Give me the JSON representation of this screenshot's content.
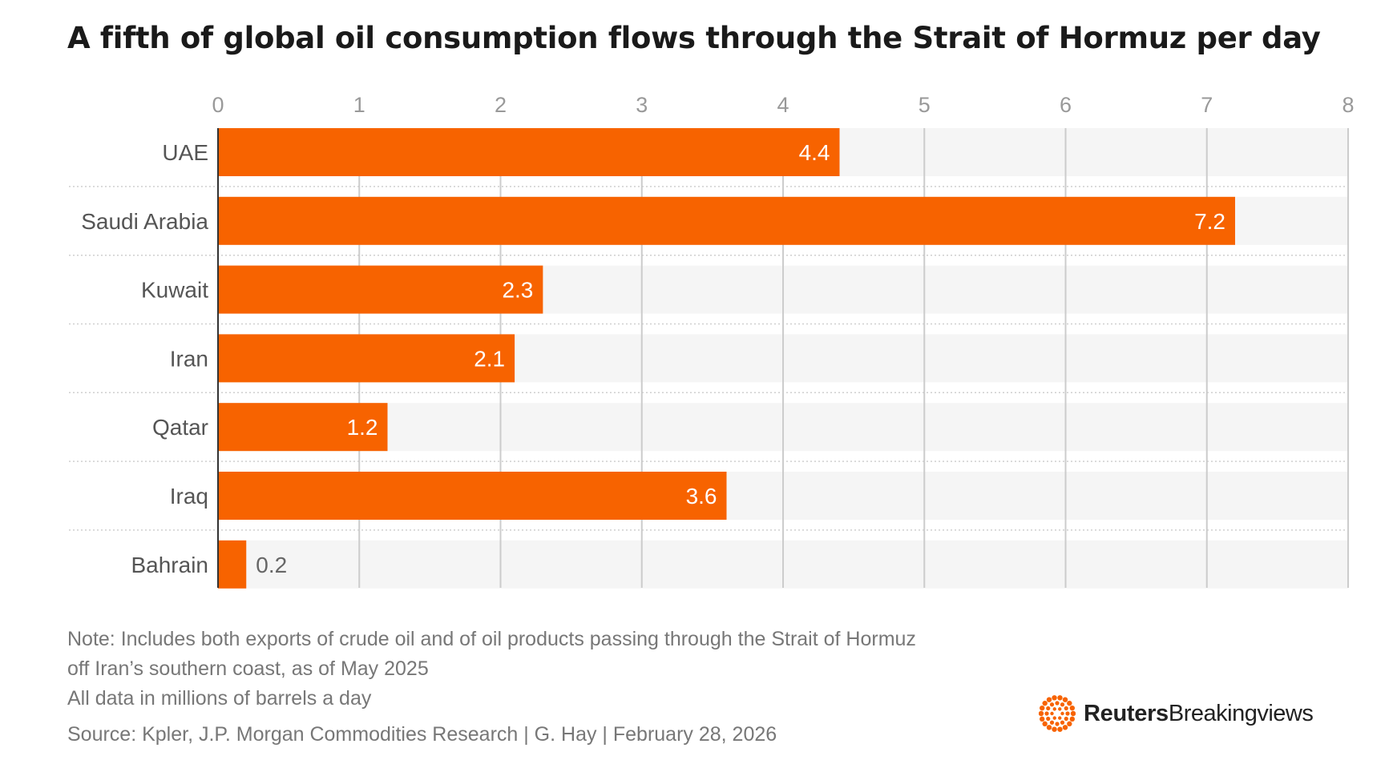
{
  "title": "A fifth of global oil consumption flows through the Strait of Hormuz per day",
  "notes": [
    "Note: Includes both exports of crude oil and of oil products passing through the Strait of Hormuz",
    "off Iran’s southern coast, as of May 2025",
    "All data in millions of barrels a day"
  ],
  "source": "Source: Kpler, J.P. Morgan Commodities Research | G. Hay | February 28, 2026",
  "logo": {
    "brand": "Reuters",
    "product": "Breakingviews"
  },
  "colors": {
    "bar": "#f76300",
    "row_band": "#f5f5f5",
    "grid": "#cccccc",
    "tick_label": "#999999",
    "category_label": "#555555",
    "text": "#1a1a1a"
  },
  "chart_data": {
    "type": "bar",
    "orientation": "horizontal",
    "categories": [
      "UAE",
      "Saudi Arabia",
      "Kuwait",
      "Iran",
      "Qatar",
      "Iraq",
      "Bahrain"
    ],
    "values": [
      4.4,
      7.2,
      2.3,
      2.1,
      1.2,
      3.6,
      0.2
    ],
    "value_labels": [
      "4.4",
      "7.2",
      "2.3",
      "2.1",
      "1.2",
      "3.6",
      "0.2"
    ],
    "xlim": [
      0,
      8
    ],
    "x_ticks": [
      0,
      1,
      2,
      3,
      4,
      5,
      6,
      7,
      8
    ],
    "x_tick_labels": [
      "0",
      "1",
      "2",
      "3",
      "4",
      "5",
      "6",
      "7",
      "8"
    ],
    "x_axis_position": "top",
    "grid": true
  }
}
